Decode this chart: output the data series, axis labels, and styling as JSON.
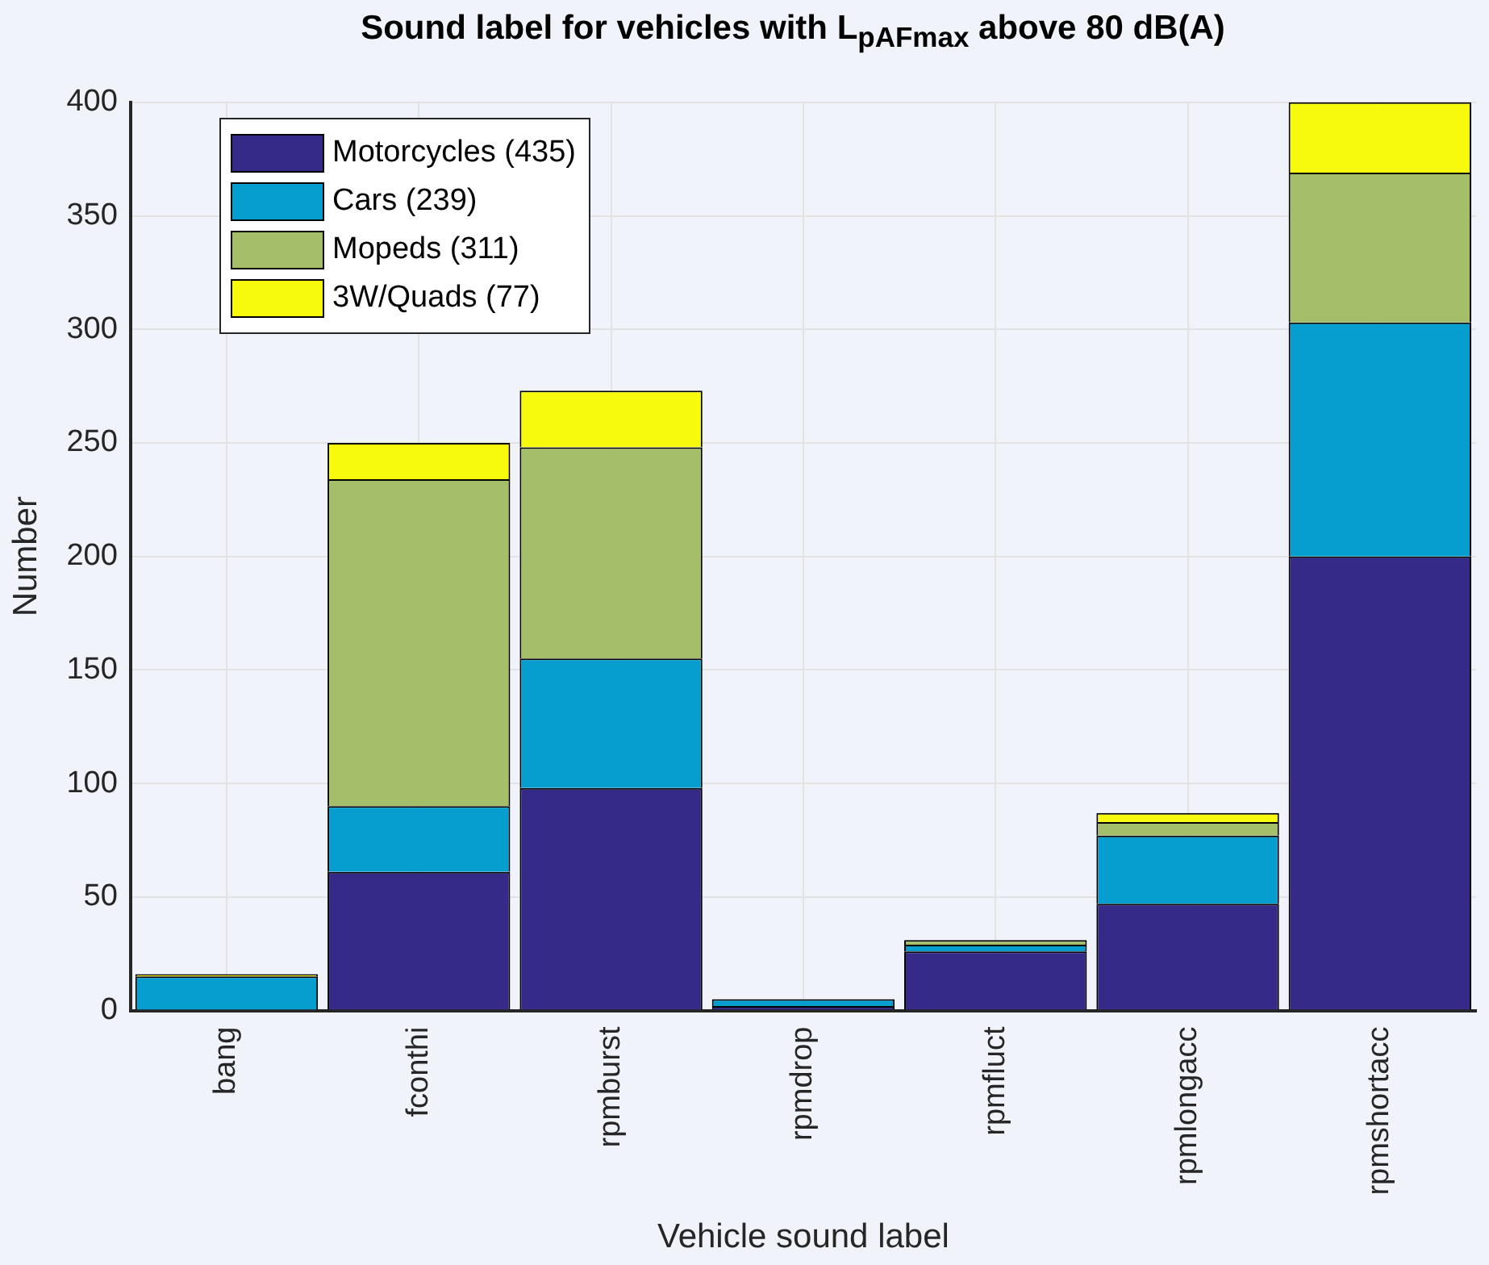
{
  "chart_data": {
    "type": "bar",
    "title": "Sound label for vehicles with L$_{pAFmax}$ above 80 dB(A)",
    "xlabel": "Vehicle sound label",
    "ylabel": "Number",
    "categories": [
      "bang",
      "fconthi",
      "rpmburst",
      "rpmdrop",
      "rpmfluct",
      "rpmlongacc",
      "rpmshortacc"
    ],
    "series": [
      {
        "name": "Motorcycles (435)",
        "color": "#352a87",
        "values": [
          0,
          61,
          98,
          2,
          26,
          47,
          200
        ]
      },
      {
        "name": "Cars (239)",
        "color": "#069dcf",
        "values": [
          15,
          29,
          57,
          3,
          3,
          30,
          103
        ]
      },
      {
        "name": "Mopeds (311)",
        "color": "#a5be6a",
        "values": [
          0,
          144,
          93,
          0,
          2,
          6,
          66
        ]
      },
      {
        "name": "3W/Quads (77)",
        "color": "#f8fa0d",
        "values": [
          1,
          16,
          25,
          0,
          0,
          4,
          31
        ]
      }
    ],
    "stacked": true,
    "ylim": [
      0,
      400
    ],
    "yticks": [
      0,
      50,
      100,
      150,
      200,
      250,
      300,
      350,
      400
    ],
    "grid": true,
    "legend": "top left"
  }
}
